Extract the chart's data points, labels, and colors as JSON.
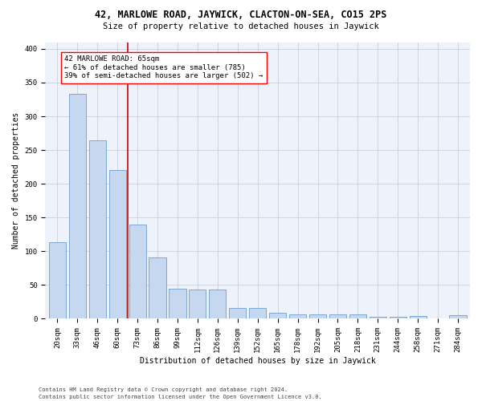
{
  "title": "42, MARLOWE ROAD, JAYWICK, CLACTON-ON-SEA, CO15 2PS",
  "subtitle": "Size of property relative to detached houses in Jaywick",
  "xlabel": "Distribution of detached houses by size in Jaywick",
  "ylabel": "Number of detached properties",
  "categories": [
    "20sqm",
    "33sqm",
    "46sqm",
    "60sqm",
    "73sqm",
    "86sqm",
    "99sqm",
    "112sqm",
    "126sqm",
    "139sqm",
    "152sqm",
    "165sqm",
    "178sqm",
    "192sqm",
    "205sqm",
    "218sqm",
    "231sqm",
    "244sqm",
    "258sqm",
    "271sqm",
    "284sqm"
  ],
  "values": [
    114,
    333,
    265,
    221,
    140,
    91,
    45,
    43,
    43,
    16,
    16,
    9,
    7,
    6,
    6,
    7,
    3,
    3,
    4,
    0,
    5
  ],
  "bar_color": "#c5d8f0",
  "bar_edge_color": "#5a8fc2",
  "bar_alpha": 1.0,
  "vline_x": 3.5,
  "vline_color": "#cc0000",
  "annotation_text": "42 MARLOWE ROAD: 65sqm\n← 61% of detached houses are smaller (785)\n39% of semi-detached houses are larger (502) →",
  "ylim": [
    0,
    410
  ],
  "yticks": [
    0,
    50,
    100,
    150,
    200,
    250,
    300,
    350,
    400
  ],
  "background_color": "#ffffff",
  "plot_bg_color": "#edf2fb",
  "grid_color": "#c8d0e0",
  "footer_line1": "Contains HM Land Registry data © Crown copyright and database right 2024.",
  "footer_line2": "Contains public sector information licensed under the Open Government Licence v3.0.",
  "title_fontsize": 8.5,
  "subtitle_fontsize": 7.5,
  "axis_label_fontsize": 7.0,
  "tick_fontsize": 6.5,
  "annotation_fontsize": 6.5,
  "footer_fontsize": 5.0
}
